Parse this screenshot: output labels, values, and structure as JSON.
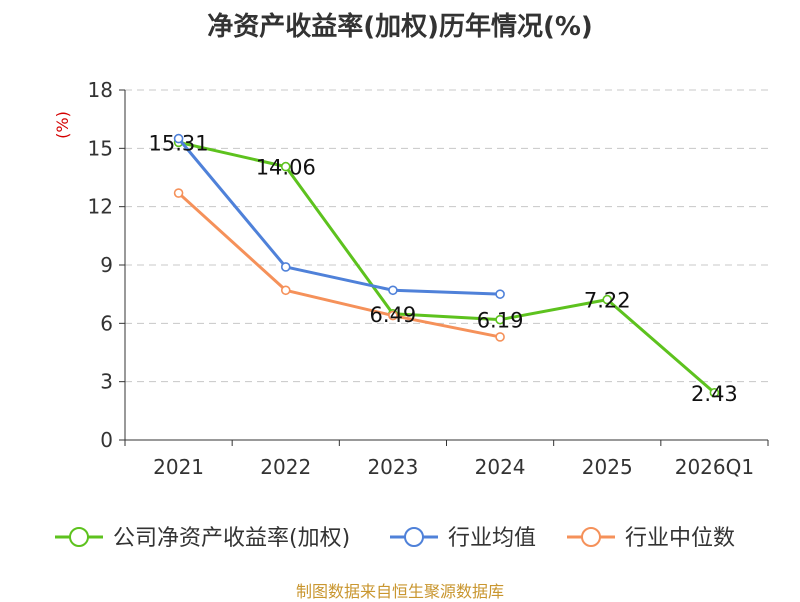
{
  "chart_data": {
    "type": "line",
    "title": "净资产收益率(加权)历年情况(%)",
    "ylabel": "(%)",
    "xlabel": "",
    "categories": [
      "2021",
      "2022",
      "2023",
      "2024",
      "2025",
      "2026Q1"
    ],
    "ylim": [
      0,
      18
    ],
    "yticks": [
      0,
      3,
      6,
      9,
      12,
      15,
      18
    ],
    "grid": true,
    "legend_position": "bottom",
    "series": [
      {
        "name": "公司净资产收益率(加权)",
        "color": "#5DC21E",
        "values": [
          15.31,
          14.06,
          6.49,
          6.19,
          7.22,
          2.43
        ],
        "labels": [
          "15.31",
          "14.06",
          "6.49",
          "6.19",
          "7.22",
          "2.43"
        ]
      },
      {
        "name": "行业均值",
        "color": "#4F81D9",
        "values": [
          15.5,
          8.9,
          7.7,
          7.5,
          null,
          null
        ]
      },
      {
        "name": "行业中位数",
        "color": "#F5915A",
        "values": [
          12.7,
          7.7,
          6.4,
          5.3,
          null,
          null
        ]
      }
    ]
  },
  "footer": {
    "source": "制图数据来自恒生聚源数据库",
    "source_color": "#C9962F"
  }
}
